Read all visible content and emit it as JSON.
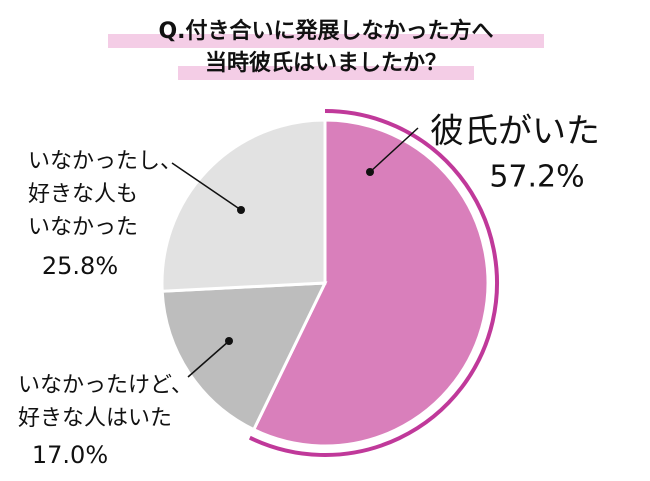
{
  "chart_data": {
    "type": "pie",
    "title": [
      "Q.付き合いに発展しなかった方へ",
      "当時彼氏はいましたか？"
    ],
    "categories": [
      [
        "彼氏がいた"
      ],
      [
        "いなかったけど、",
        "好きな人はいた"
      ],
      [
        "いなかったし、",
        "好きな人も",
        "いなかった"
      ]
    ],
    "values": [
      57.2,
      17.0,
      25.8
    ],
    "value_labels": [
      "57.2%",
      "17.0%",
      "25.8%"
    ],
    "colors": [
      "#d97fbb",
      "#bdbdbd",
      "#e2e2e2"
    ]
  }
}
